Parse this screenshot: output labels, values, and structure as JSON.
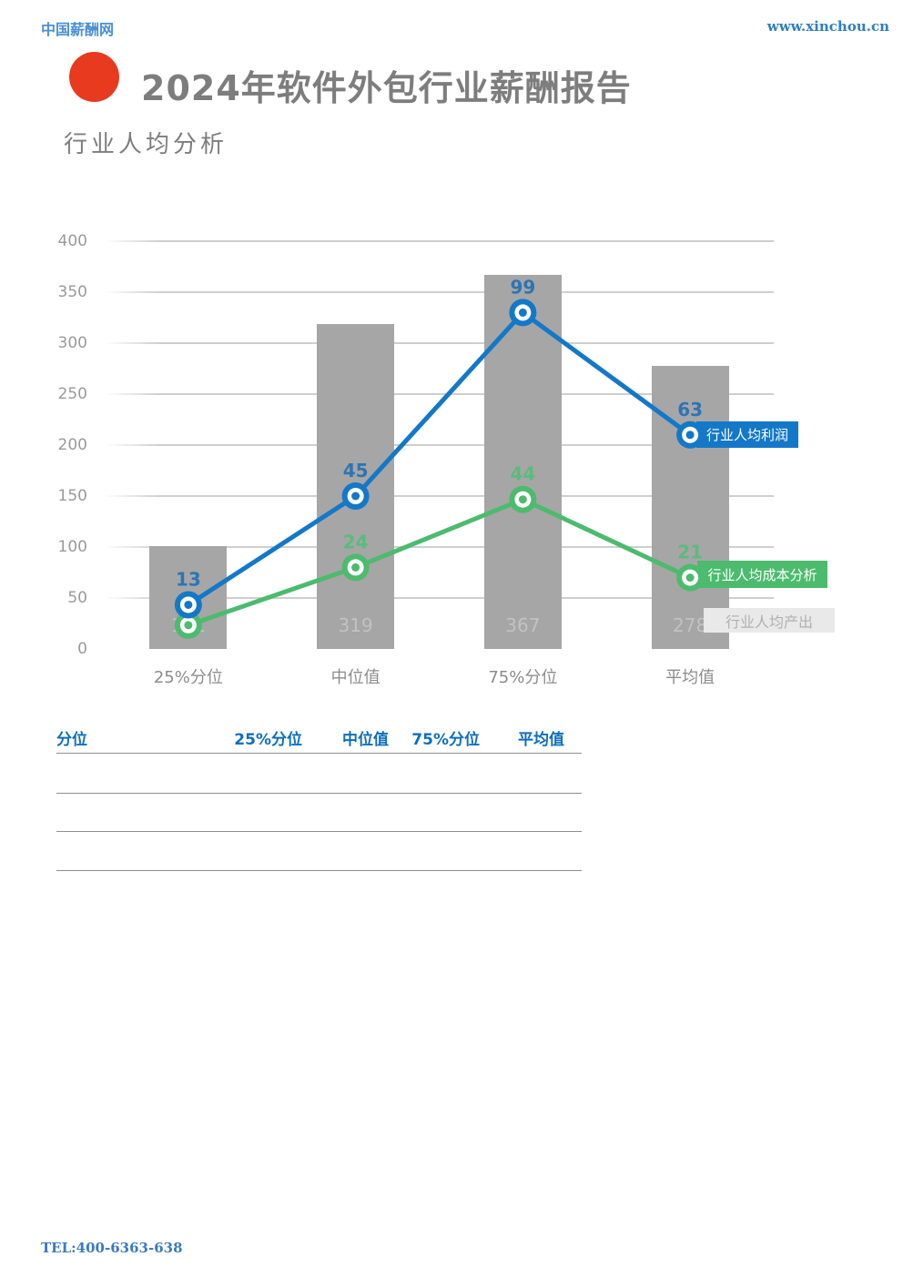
{
  "header": {
    "site_name": "中国薪酬网",
    "site_url": "www.xinchou.cn",
    "title": "2024年软件外包行业薪酬报告",
    "subtitle": "行业人均分析"
  },
  "colors": {
    "accent_red": "#e83a1e",
    "profit_blue": "#1478c8",
    "profit_label_blue": "#2e74b5",
    "cost_green": "#4cbb6e",
    "cost_label_green": "#5abc7c",
    "bar_gray": "#a6a6a6",
    "bar_label_gray": "#c2c2c2",
    "grid_gray": "#cfcfcf",
    "axis_text_gray": "#9a9a9a",
    "table_header_blue": "#0e6ebd",
    "link_blue": "#2f7fc1"
  },
  "chart_data": {
    "type": "combo-bar-line",
    "title": "行业人均分析",
    "categories": [
      "25%分位",
      "中位值",
      "75%分位",
      "平均值"
    ],
    "series": [
      {
        "name": "行业人均产出",
        "type": "bar",
        "axis": "primary",
        "color": "#a6a6a6",
        "values": [
          101,
          319,
          367,
          278
        ]
      },
      {
        "name": "行业人均利润",
        "type": "line",
        "axis": "secondary",
        "color": "#1478c8",
        "label_color": "#2e74b5",
        "values": [
          13,
          45,
          99,
          63
        ]
      },
      {
        "name": "行业人均成本分析",
        "type": "line",
        "axis": "secondary",
        "color": "#4cbb6e",
        "label_color": "#5abc7c",
        "values": [
          7,
          24,
          44,
          21
        ]
      }
    ],
    "primary_axis": {
      "min": 0,
      "max": 400,
      "step": 50
    },
    "secondary_axis": {
      "min": 0,
      "max": 120,
      "visible": false
    },
    "grid": true,
    "legend_position": "right-overlay"
  },
  "table": {
    "columns": [
      "分位",
      "25%分位",
      "中位值",
      "75%分位",
      "平均值"
    ],
    "rows": [
      [
        "",
        "",
        "",
        "",
        ""
      ],
      [
        "",
        "",
        "",
        "",
        ""
      ],
      [
        "",
        "",
        "",
        "",
        ""
      ]
    ]
  },
  "footer": {
    "tel": "TEL:400-6363-638"
  }
}
